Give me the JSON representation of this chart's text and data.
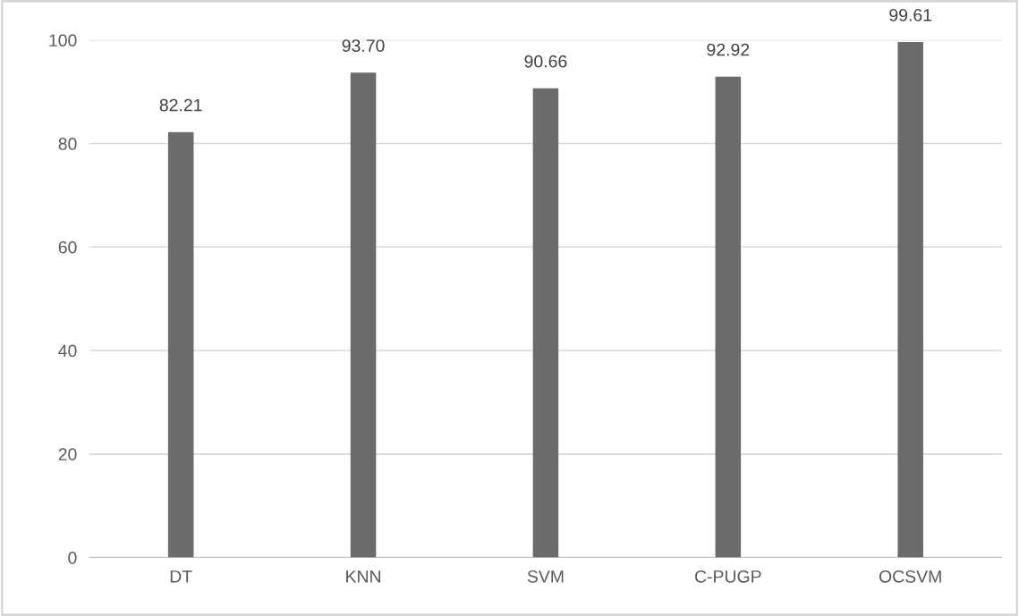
{
  "chart_data": {
    "type": "bar",
    "categories": [
      "DT",
      "KNN",
      "SVM",
      "C-PUGP",
      "OCSVM"
    ],
    "values": [
      82.21,
      93.7,
      90.66,
      92.92,
      99.61
    ],
    "value_labels": [
      "82.21",
      "93.70",
      "90.66",
      "92.92",
      "99.61"
    ],
    "color": "#6b6b6b",
    "ylim": [
      0,
      100
    ],
    "yticks": [
      0,
      20,
      40,
      60,
      80,
      100
    ],
    "grid": "y"
  }
}
